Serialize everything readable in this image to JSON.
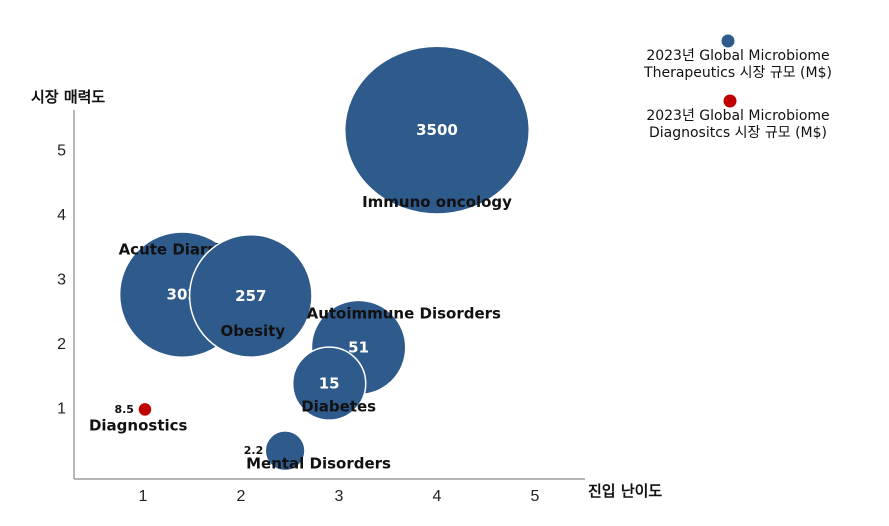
{
  "chart_data": {
    "type": "scatter",
    "title": "",
    "xlabel": "진입 난이도",
    "ylabel": "시장 매력도",
    "xlim": [
      0.3,
      5.6
    ],
    "ylim": [
      -1.2,
      5.5
    ],
    "xticks": [
      "1",
      "2",
      "3",
      "4",
      "5"
    ],
    "yticks": [
      "1",
      "2",
      "3",
      "4",
      "5"
    ],
    "grid": false,
    "legend_position": "top-right",
    "colors": {
      "therapeutics": "#2f5a8c",
      "diagnostics": "#c00000"
    },
    "series": [
      {
        "name": "2023년 Global Microbiome Therapeutics 시장 규모 (M$)",
        "name_lines": [
          "2023년 Global Microbiome",
          "Therapeutics 시장 규모 (M$)"
        ],
        "points": [
          {
            "label": "Immuno oncology",
            "x": 4.0,
            "y": 5.3,
            "value": 3500,
            "value_text": "3500"
          },
          {
            "label": "Acute Diarrhea",
            "x": 1.4,
            "y": 2.75,
            "value": 302,
            "value_text": "302"
          },
          {
            "label": "Obesity",
            "x": 2.1,
            "y": 2.73,
            "value": 257,
            "value_text": "257"
          },
          {
            "label": "Autoimmune Disorders",
            "x": 3.2,
            "y": 1.93,
            "value": 51,
            "value_text": "51"
          },
          {
            "label": "Diabetes",
            "x": 2.9,
            "y": 1.37,
            "value": 15,
            "value_text": "15"
          },
          {
            "label": "Mental Disorders",
            "x": 2.45,
            "y": 0.33,
            "value": 2.2,
            "value_text": "2.2"
          }
        ]
      },
      {
        "name": "2023년 Global Microbiome Diagnositcs 시장 규모 (M$)",
        "name_lines": [
          "2023년 Global Microbiome",
          "Diagnositcs 시장 규모 (M$)"
        ],
        "points": [
          {
            "label": "Diagnostics",
            "x": 1.02,
            "y": 0.97,
            "value": 8.5,
            "value_text": "8.5"
          }
        ]
      }
    ]
  }
}
